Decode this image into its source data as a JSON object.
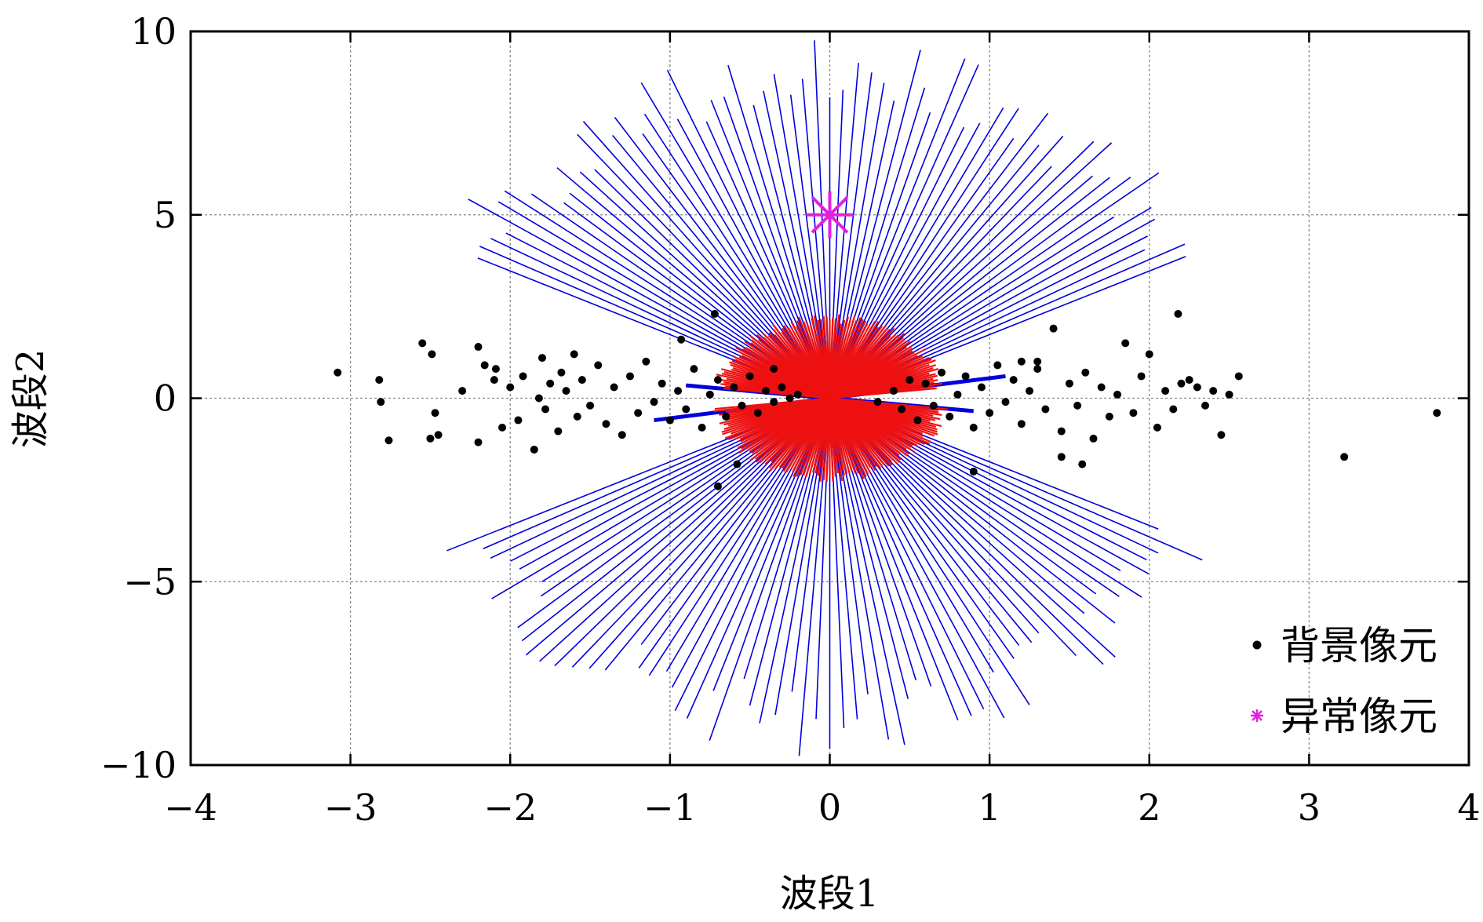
{
  "chart_data": {
    "type": "scatter",
    "title": "",
    "xlabel": "波段1",
    "ylabel": "波段2",
    "xlim": [
      -4,
      4
    ],
    "ylim": [
      -10,
      10
    ],
    "xticks": [
      -4,
      -3,
      -2,
      -1,
      0,
      1,
      2,
      3,
      4
    ],
    "yticks": [
      -10,
      -5,
      0,
      5,
      10
    ],
    "xtick_labels": [
      "−4",
      "−3",
      "−2",
      "−1",
      "0",
      "1",
      "2",
      "3",
      "4"
    ],
    "ytick_labels": [
      "−10",
      "−5",
      "0",
      "5",
      "10"
    ],
    "grid": true,
    "legend_position": "bottom-right",
    "legend": [
      {
        "label": "背景像元",
        "marker": "dot",
        "color": "#000000"
      },
      {
        "label": "异常像元",
        "marker": "asterisk",
        "color": "#e020e0"
      }
    ],
    "series": [
      {
        "name": "背景像元",
        "kind": "points",
        "color": "#000000",
        "x": [
          -3.08,
          -2.82,
          -2.81,
          -2.76,
          -2.55,
          -2.5,
          -2.49,
          -2.47,
          -2.45,
          -2.3,
          -2.2,
          -2.2,
          -2.16,
          -2.1,
          -2.09,
          -2.05,
          -2.0,
          -1.95,
          -1.92,
          -1.85,
          -1.82,
          -1.8,
          -1.78,
          -1.75,
          -1.7,
          -1.68,
          -1.65,
          -1.6,
          -1.58,
          -1.55,
          -1.5,
          -1.45,
          -1.4,
          -1.35,
          -1.3,
          -1.25,
          -1.2,
          -1.15,
          -1.1,
          -1.05,
          -1.0,
          -0.95,
          -0.9,
          -0.85,
          -0.8,
          -0.75,
          -0.7,
          -0.65,
          -0.6,
          -0.55,
          -0.5,
          -0.45,
          -0.4,
          -0.35,
          -0.3,
          -0.25,
          -0.2,
          -0.93,
          -0.72,
          -0.7,
          -0.35,
          -0.58,
          0.3,
          0.4,
          0.45,
          0.5,
          0.55,
          0.6,
          0.65,
          0.7,
          0.75,
          0.8,
          0.85,
          0.9,
          0.95,
          1.0,
          1.05,
          1.1,
          1.15,
          1.2,
          1.25,
          1.3,
          1.35,
          1.4,
          1.45,
          1.5,
          1.55,
          1.6,
          1.65,
          1.7,
          1.75,
          1.8,
          1.85,
          1.9,
          1.95,
          2.0,
          2.05,
          2.1,
          2.15,
          2.2,
          2.25,
          2.3,
          2.35,
          2.4,
          2.45,
          2.5,
          2.56,
          2.18,
          1.45,
          1.58,
          1.2,
          3.22,
          3.8,
          0.9,
          1.3
        ],
        "y": [
          0.7,
          0.5,
          -0.1,
          -1.15,
          1.5,
          -1.1,
          1.2,
          -0.4,
          -1.0,
          0.2,
          1.4,
          -1.2,
          0.9,
          0.5,
          0.8,
          -0.8,
          0.3,
          -0.6,
          0.6,
          -1.4,
          0.0,
          1.1,
          -0.3,
          0.4,
          -0.9,
          0.7,
          0.2,
          1.2,
          -0.5,
          0.5,
          -0.2,
          0.9,
          -0.7,
          0.3,
          -1.0,
          0.6,
          -0.4,
          1.0,
          -0.1,
          0.4,
          -0.6,
          0.2,
          -0.3,
          0.8,
          -0.8,
          0.1,
          0.5,
          -0.5,
          0.3,
          -0.2,
          0.6,
          -0.4,
          0.2,
          -0.1,
          0.3,
          0.0,
          0.1,
          1.6,
          2.3,
          -2.4,
          0.8,
          -1.8,
          -0.1,
          0.2,
          -0.3,
          0.5,
          -0.6,
          0.4,
          -0.2,
          0.7,
          -0.5,
          0.1,
          0.6,
          -0.8,
          0.3,
          -0.4,
          0.9,
          -0.1,
          0.5,
          -0.7,
          0.2,
          0.8,
          -0.3,
          1.9,
          -0.9,
          0.4,
          -0.2,
          0.7,
          -1.1,
          0.3,
          -0.5,
          0.1,
          1.5,
          -0.4,
          0.6,
          1.2,
          -0.8,
          0.2,
          -0.3,
          0.4,
          0.5,
          0.3,
          -0.2,
          0.2,
          -1.0,
          0.1,
          0.6,
          2.3,
          -1.6,
          -1.8,
          1.0,
          -1.6,
          -0.4,
          -2.0,
          1.0
        ]
      },
      {
        "name": "异常像元",
        "kind": "points",
        "color": "#e020e0",
        "x": [
          0.0
        ],
        "y": [
          5.0
        ]
      },
      {
        "name": "",
        "kind": "rays",
        "color": "#0000dd",
        "center": [
          0.0,
          0.0
        ],
        "outer_rx": 2.7,
        "outer_ry": 9.6,
        "excluded_angle_deg": 25
      },
      {
        "name": "",
        "kind": "rays",
        "color": "#ee1111",
        "center": [
          0.0,
          0.0
        ],
        "outer_rx": 0.75,
        "outer_ry": 2.3
      }
    ]
  }
}
